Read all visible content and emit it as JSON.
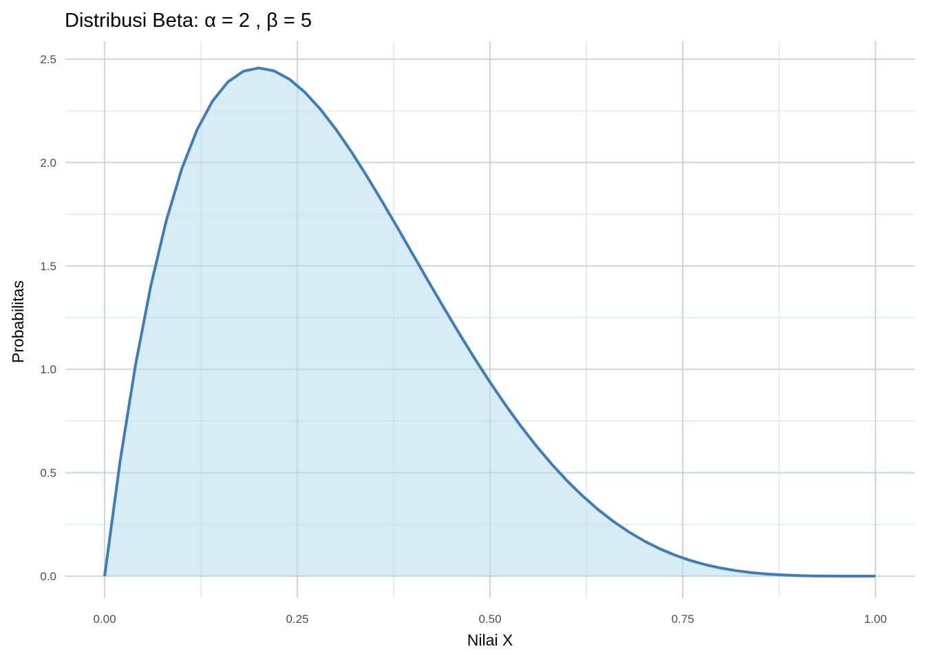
{
  "chart_data": {
    "type": "area",
    "title": "Distribusi Beta: α = 2 , β = 5",
    "xlabel": "Nilai X",
    "ylabel": "Probabilitas",
    "xlim": [
      0,
      1
    ],
    "ylim": [
      0,
      2.5
    ],
    "grid": true,
    "x_ticks": [
      "0.00",
      "0.25",
      "0.50",
      "0.75",
      "1.00"
    ],
    "y_ticks": [
      "0.0",
      "0.5",
      "1.0",
      "1.5",
      "2.0",
      "2.5"
    ],
    "x_tick_values": [
      0,
      0.25,
      0.5,
      0.75,
      1
    ],
    "y_tick_values": [
      0,
      0.5,
      1,
      1.5,
      2,
      2.5
    ],
    "colors": {
      "fill": "#d6ebf6",
      "line": "#3f7db8",
      "grid": "#ebebeb"
    },
    "x": [
      0,
      0.02,
      0.04,
      0.06,
      0.08,
      0.1,
      0.12,
      0.14,
      0.16,
      0.18,
      0.2,
      0.22,
      0.24,
      0.26,
      0.28,
      0.3,
      0.32,
      0.34,
      0.36,
      0.38,
      0.4,
      0.42,
      0.44,
      0.46,
      0.48,
      0.5,
      0.52,
      0.54,
      0.56,
      0.58,
      0.6,
      0.62,
      0.64,
      0.66,
      0.68,
      0.7,
      0.72,
      0.74,
      0.76,
      0.78,
      0.8,
      0.82,
      0.84,
      0.86,
      0.88,
      0.9,
      0.92,
      0.94,
      0.96,
      0.98,
      1.0
    ],
    "y": [
      0,
      0.5534,
      1.0192,
      1.4053,
      1.7193,
      1.9683,
      2.1589,
      2.2974,
      2.3898,
      2.4414,
      2.4576,
      2.443,
      2.4021,
      2.339,
      2.2574,
      2.1609,
      2.0526,
      1.9354,
      1.8119,
      1.6845,
      1.5552,
      1.4259,
      1.2982,
      1.1734,
      1.0529,
      0.9375,
      0.8281,
      0.7254,
      0.6297,
      0.5414,
      0.4608,
      0.3878,
      0.3225,
      0.2646,
      0.2139,
      0.1701,
      0.1328,
      0.1014,
      0.0756,
      0.0548,
      0.0384,
      0.0258,
      0.0165,
      0.0099,
      0.0055,
      0.0027,
      0.0011,
      0.0004,
      0.0001,
      0.0,
      0
    ]
  }
}
